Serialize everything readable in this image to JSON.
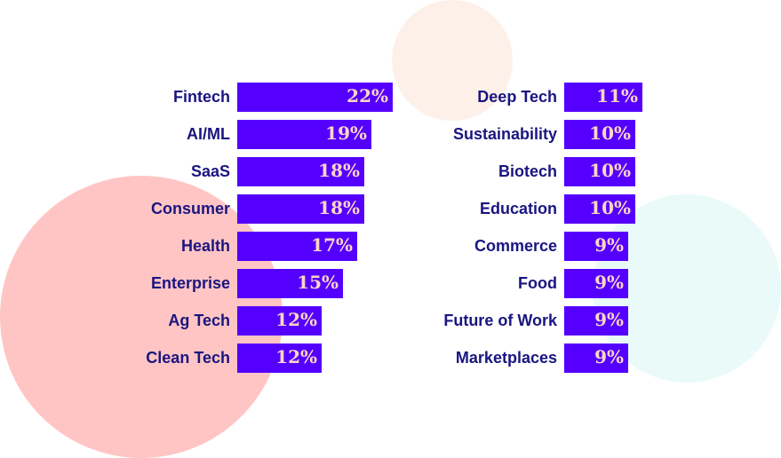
{
  "colors": {
    "bar": "#5500ff",
    "label": "#1a1580",
    "value_text": "#ffd6c2",
    "circle_pink": "#ffc5c4",
    "circle_peach": "#fdf0e8",
    "circle_mint": "#eafaf9"
  },
  "chart_data": [
    {
      "type": "bar",
      "orientation": "horizontal",
      "categories": [
        "Fintech",
        "AI/ML",
        "SaaS",
        "Consumer",
        "Health",
        "Enterprise",
        "Ag Tech",
        "Clean Tech"
      ],
      "values": [
        22,
        19,
        18,
        18,
        17,
        15,
        12,
        12
      ],
      "value_labels": [
        "22%",
        "19%",
        "18%",
        "18%",
        "17%",
        "15%",
        "12%",
        "12%"
      ],
      "unit": "%",
      "title": "",
      "xlabel": "",
      "ylabel": "",
      "grid": false,
      "xlim": [
        0,
        22
      ]
    },
    {
      "type": "bar",
      "orientation": "horizontal",
      "categories": [
        "Deep Tech",
        "Sustainability",
        "Biotech",
        "Education",
        "Commerce",
        "Food",
        "Future of Work",
        "Marketplaces"
      ],
      "values": [
        11,
        10,
        10,
        10,
        9,
        9,
        9,
        9
      ],
      "value_labels": [
        "11%",
        "10%",
        "10%",
        "10%",
        "9%",
        "9%",
        "9%",
        "9%"
      ],
      "unit": "%",
      "title": "",
      "xlabel": "",
      "ylabel": "",
      "grid": false,
      "xlim": [
        0,
        22
      ]
    }
  ]
}
